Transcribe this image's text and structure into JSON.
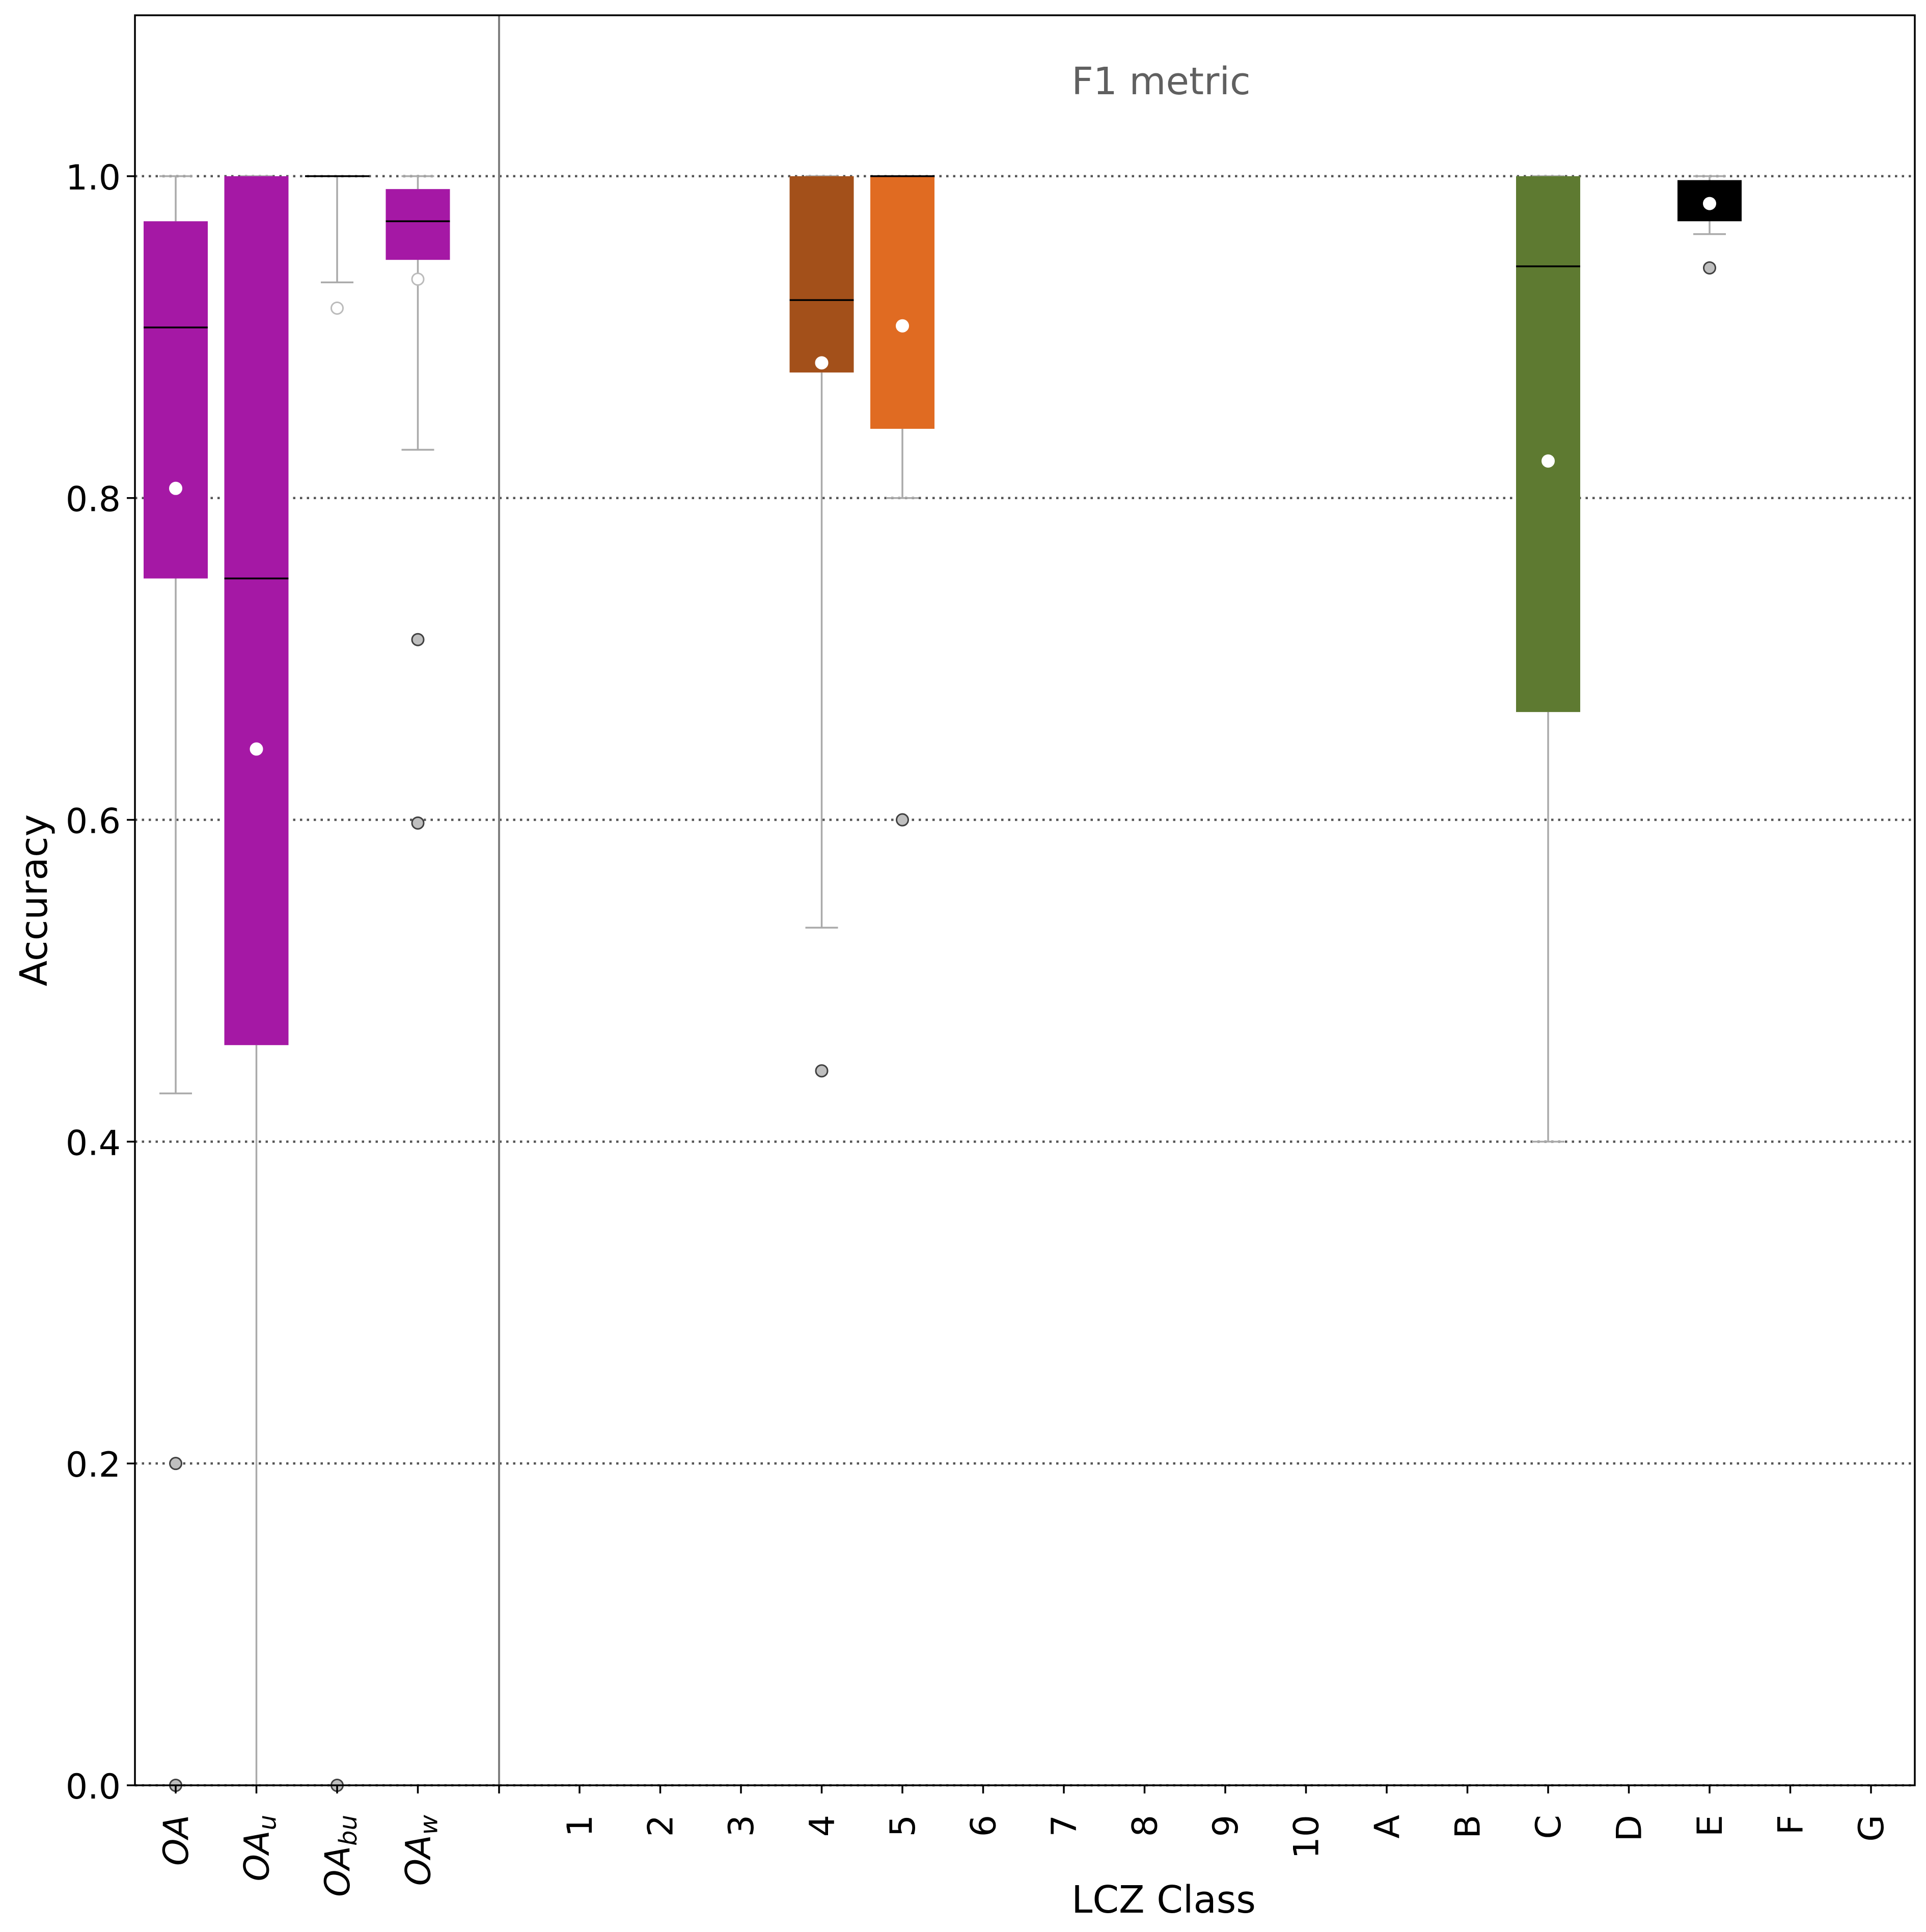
{
  "chart_data": {
    "type": "boxplot",
    "title": "F1 metric",
    "xlabel": "LCZ Class",
    "ylabel": "Accuracy",
    "ylim": [
      0.0,
      1.1
    ],
    "yticks": [
      "0.0",
      "0.2",
      "0.4",
      "0.6",
      "0.8",
      "1.0"
    ],
    "ytick_values": [
      0.0,
      0.2,
      0.4,
      0.6,
      0.8,
      1.0
    ],
    "grid": "horizontal dotted",
    "overall_categories": [
      {
        "base": "OA",
        "sub": ""
      },
      {
        "base": "OA",
        "sub": "u"
      },
      {
        "base": "OA",
        "sub": "bu"
      },
      {
        "base": "OA",
        "sub": "w"
      }
    ],
    "class_categories": [
      "1",
      "2",
      "3",
      "4",
      "5",
      "6",
      "7",
      "8",
      "9",
      "10",
      "A",
      "B",
      "C",
      "D",
      "E",
      "F",
      "G"
    ],
    "boxes": [
      {
        "label": "OA",
        "color": "#a518a5",
        "q1": 0.75,
        "median": 0.906,
        "q3": 0.972,
        "whislo": 0.43,
        "whishi": 1.0,
        "mean": 0.806,
        "fliers": [
          0.2,
          0.0
        ],
        "mean_style": "white"
      },
      {
        "label": "OA_u",
        "color": "#a518a5",
        "q1": 0.46,
        "median": 0.75,
        "q3": 1.0,
        "whislo": 0.0,
        "whishi": 1.0,
        "mean": 0.644,
        "fliers": [],
        "mean_style": "white"
      },
      {
        "label": "OA_bu",
        "color": "#a518a5",
        "q1": 1.0,
        "median": 1.0,
        "q3": 1.0,
        "whislo": 0.934,
        "whishi": 1.0,
        "mean": 0.918,
        "fliers": [
          0.0
        ],
        "mean_style": "hollow"
      },
      {
        "label": "OA_w",
        "color": "#a518a5",
        "q1": 0.948,
        "median": 0.972,
        "q3": 0.992,
        "whislo": 0.83,
        "whishi": 1.0,
        "mean": 0.936,
        "fliers": [
          0.712,
          0.598
        ],
        "mean_style": "hollow"
      },
      {
        "label": "4",
        "color": "#a3501a",
        "q1": 0.878,
        "median": 0.923,
        "q3": 1.0,
        "whislo": 0.533,
        "whishi": 1.0,
        "mean": 0.884,
        "fliers": [
          0.444
        ],
        "mean_style": "white"
      },
      {
        "label": "5",
        "color": "#e06b22",
        "q1": 0.843,
        "median": 1.0,
        "q3": 1.0,
        "whislo": 0.8,
        "whishi": 1.0,
        "mean": 0.907,
        "fliers": [
          0.6
        ],
        "mean_style": "white"
      },
      {
        "label": "C",
        "color": "#5e7a31",
        "q1": 0.667,
        "median": 0.944,
        "q3": 1.0,
        "whislo": 0.4,
        "whishi": 1.0,
        "mean": 0.823,
        "fliers": [],
        "mean_style": "white"
      },
      {
        "label": "E",
        "color": "#000000",
        "q1": 0.972,
        "median": 0.997,
        "q3": 0.997,
        "whislo": 0.964,
        "whishi": 1.0,
        "mean": 0.983,
        "fliers": [
          0.943
        ],
        "mean_style": "white"
      }
    ]
  }
}
